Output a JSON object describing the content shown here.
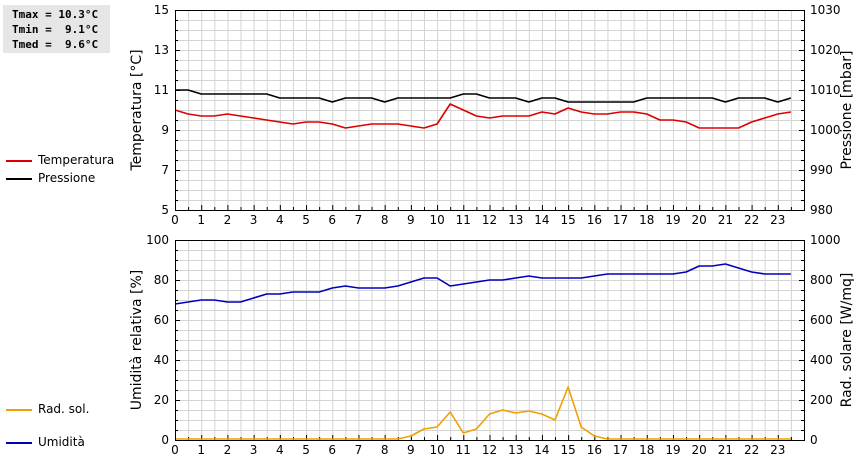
{
  "stats": {
    "tmax": "Tmax = 10.3°C",
    "tmin": "Tmin =  9.1°C",
    "tmed": "Tmed =  9.6°C"
  },
  "legend": {
    "temperatura": "Temperatura",
    "pressione": "Pressione",
    "umidita": "Umidità",
    "radsol": "Rad. sol."
  },
  "colors": {
    "temperatura": "#dd0000",
    "pressione": "#000000",
    "umidita": "#0000bb",
    "radsol": "#f0a000",
    "grid": "#d4d4d4"
  },
  "chart_data": [
    {
      "type": "line",
      "title": "",
      "xlabel": "",
      "ylabel": "Temperatura [°C]",
      "ylabel_right": "Pressione [mbar]",
      "xlim": [
        0,
        24
      ],
      "ylim": [
        5,
        15
      ],
      "ylim_right": [
        980,
        1030
      ],
      "xticks": [
        0,
        1,
        2,
        3,
        4,
        5,
        6,
        7,
        8,
        9,
        10,
        11,
        12,
        13,
        14,
        15,
        16,
        17,
        18,
        19,
        20,
        21,
        22,
        23
      ],
      "yticks": [
        5,
        7,
        9,
        11,
        13,
        15
      ],
      "yticks_right": [
        980,
        990,
        1000,
        1010,
        1020,
        1030
      ],
      "grid": true,
      "series": [
        {
          "name": "Temperatura",
          "axis": "left",
          "x": [
            0,
            0.5,
            1,
            1.5,
            2,
            2.5,
            3,
            3.5,
            4,
            4.5,
            5,
            5.5,
            6,
            6.5,
            7,
            7.5,
            8,
            8.5,
            9,
            9.5,
            10,
            10.5,
            11,
            11.5,
            12,
            12.5,
            13,
            13.5,
            14,
            14.5,
            15,
            15.5,
            16,
            16.5,
            17,
            17.5,
            18,
            18.5,
            19,
            19.5,
            20,
            20.5,
            21,
            21.5,
            22,
            22.5,
            23,
            23.5
          ],
          "y": [
            10.0,
            9.8,
            9.7,
            9.7,
            9.8,
            9.7,
            9.6,
            9.5,
            9.4,
            9.3,
            9.4,
            9.4,
            9.3,
            9.1,
            9.2,
            9.3,
            9.3,
            9.3,
            9.2,
            9.1,
            9.3,
            10.3,
            10.0,
            9.7,
            9.6,
            9.7,
            9.7,
            9.7,
            9.9,
            9.8,
            10.1,
            9.9,
            9.8,
            9.8,
            9.9,
            9.9,
            9.8,
            9.5,
            9.5,
            9.4,
            9.1,
            9.1,
            9.1,
            9.1,
            9.4,
            9.6,
            9.8,
            9.9
          ]
        },
        {
          "name": "Pressione",
          "axis": "right",
          "x": [
            0,
            0.5,
            1,
            1.5,
            2,
            2.5,
            3,
            3.5,
            4,
            4.5,
            5,
            5.5,
            6,
            6.5,
            7,
            7.5,
            8,
            8.5,
            9,
            9.5,
            10,
            10.5,
            11,
            11.5,
            12,
            12.5,
            13,
            13.5,
            14,
            14.5,
            15,
            15.5,
            16,
            16.5,
            17,
            17.5,
            18,
            18.5,
            19,
            19.5,
            20,
            20.5,
            21,
            21.5,
            22,
            22.5,
            23,
            23.5
          ],
          "y": [
            1010,
            1010,
            1009,
            1009,
            1009,
            1009,
            1009,
            1009,
            1008,
            1008,
            1008,
            1008,
            1007,
            1008,
            1008,
            1008,
            1007,
            1008,
            1008,
            1008,
            1008,
            1008,
            1009,
            1009,
            1008,
            1008,
            1008,
            1007,
            1008,
            1008,
            1007,
            1007,
            1007,
            1007,
            1007,
            1007,
            1008,
            1008,
            1008,
            1008,
            1008,
            1008,
            1007,
            1008,
            1008,
            1008,
            1007,
            1008
          ]
        }
      ]
    },
    {
      "type": "line",
      "title": "",
      "xlabel": "",
      "ylabel": "Umidità relativa [%]",
      "ylabel_right": "Rad. solare [W/mq]",
      "xlim": [
        0,
        24
      ],
      "ylim": [
        0,
        100
      ],
      "ylim_right": [
        0,
        1000
      ],
      "xticks": [
        0,
        1,
        2,
        3,
        4,
        5,
        6,
        7,
        8,
        9,
        10,
        11,
        12,
        13,
        14,
        15,
        16,
        17,
        18,
        19,
        20,
        21,
        22,
        23
      ],
      "yticks": [
        0,
        20,
        40,
        60,
        80,
        100
      ],
      "yticks_right": [
        0,
        200,
        400,
        600,
        800,
        1000
      ],
      "grid": true,
      "series": [
        {
          "name": "Umidità",
          "axis": "left",
          "x": [
            0,
            0.5,
            1,
            1.5,
            2,
            2.5,
            3,
            3.5,
            4,
            4.5,
            5,
            5.5,
            6,
            6.5,
            7,
            7.5,
            8,
            8.5,
            9,
            9.5,
            10,
            10.5,
            11,
            11.5,
            12,
            12.5,
            13,
            13.5,
            14,
            14.5,
            15,
            15.5,
            16,
            16.5,
            17,
            17.5,
            18,
            18.5,
            19,
            19.5,
            20,
            20.5,
            21,
            21.5,
            22,
            22.5,
            23,
            23.5
          ],
          "y": [
            68,
            69,
            70,
            70,
            69,
            69,
            71,
            73,
            73,
            74,
            74,
            74,
            76,
            77,
            76,
            76,
            76,
            77,
            79,
            81,
            81,
            77,
            78,
            79,
            80,
            80,
            81,
            82,
            81,
            81,
            81,
            81,
            82,
            83,
            83,
            83,
            83,
            83,
            83,
            84,
            87,
            87,
            88,
            86,
            84,
            83,
            83,
            83
          ]
        },
        {
          "name": "Rad. sol.",
          "axis": "right",
          "x": [
            0,
            0.5,
            1,
            1.5,
            2,
            2.5,
            3,
            3.5,
            4,
            4.5,
            5,
            5.5,
            6,
            6.5,
            7,
            7.5,
            8,
            8.5,
            9,
            9.5,
            10,
            10.5,
            11,
            11.5,
            12,
            12.5,
            13,
            13.5,
            14,
            14.5,
            15,
            15.5,
            16,
            16.5,
            17,
            17.5,
            18,
            18.5,
            19,
            19.5,
            20,
            20.5,
            21,
            21.5,
            22,
            22.5,
            23,
            23.5
          ],
          "y": [
            0,
            0,
            0,
            0,
            0,
            0,
            0,
            0,
            0,
            0,
            0,
            0,
            0,
            0,
            0,
            0,
            0,
            0,
            20,
            55,
            65,
            140,
            35,
            55,
            130,
            150,
            135,
            145,
            130,
            100,
            265,
            65,
            20,
            0,
            0,
            0,
            0,
            0,
            0,
            0,
            0,
            0,
            0,
            0,
            0,
            0,
            0,
            0
          ]
        }
      ]
    }
  ]
}
